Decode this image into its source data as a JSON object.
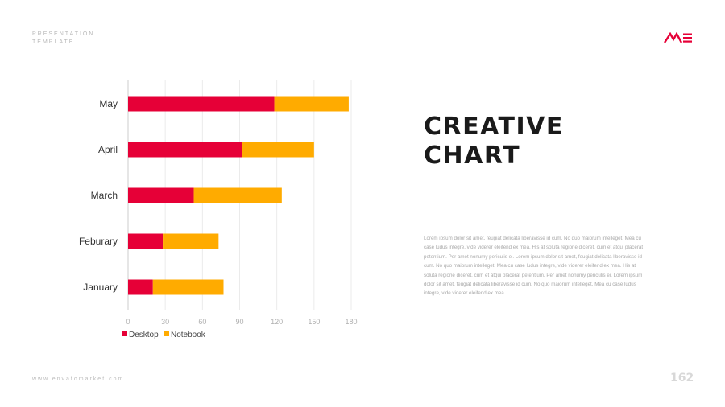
{
  "header": {
    "brand_line1": "PRESENTATION",
    "brand_line2": "TEMPLATE"
  },
  "logo": {
    "name": "me-logo-icon",
    "color": "#e60037"
  },
  "title": {
    "line1": "CREATIVE",
    "line2": "CHART"
  },
  "body": "Lorem ipsum dolor sit amet, feugiat delicata liberavisse id cum. No quo maiorum intelleget. Mea cu case ludus integre, vide viderer eleifend ex mea. His at soluta regione diceret, cum et atqui placerat petentium. Per amet nonumy periculis ei. Lorem ipsum dolor sit amet, feugiat delicata liberavisse id cum. No quo maiorum intelleget. Mea cu case ludus integre, vide viderer eleifend ex mea. His at soluta regione diceret, cum et atqui placerat petentium. Per amet nonumy periculis ei. Lorem ipsum dolor sit amet, feugiat delicata liberavisse id cum. No quo maiorum intelleget. Mea cu case ludus integre, vide viderer eleifend ex mea.",
  "footer": {
    "url": "www.envatomarket.com",
    "page_number": "162"
  },
  "colors": {
    "desktop": "#e60037",
    "notebook": "#ffab00",
    "grid": "#ebebeb",
    "axis": "#cccccc"
  },
  "chart_data": {
    "type": "bar",
    "orientation": "horizontal",
    "stacked": true,
    "categories": [
      "May",
      "April",
      "March",
      "Feburary",
      "January"
    ],
    "series": [
      {
        "name": "Desktop",
        "values": [
          118,
          92,
          53,
          28,
          20
        ]
      },
      {
        "name": "Notebook",
        "values": [
          60,
          58,
          71,
          45,
          57
        ]
      }
    ],
    "xticks": [
      "0",
      "30",
      "60",
      "90",
      "120",
      "150",
      "180"
    ],
    "xlim": [
      0,
      180
    ],
    "grid": true,
    "legend": "bottom-left"
  }
}
